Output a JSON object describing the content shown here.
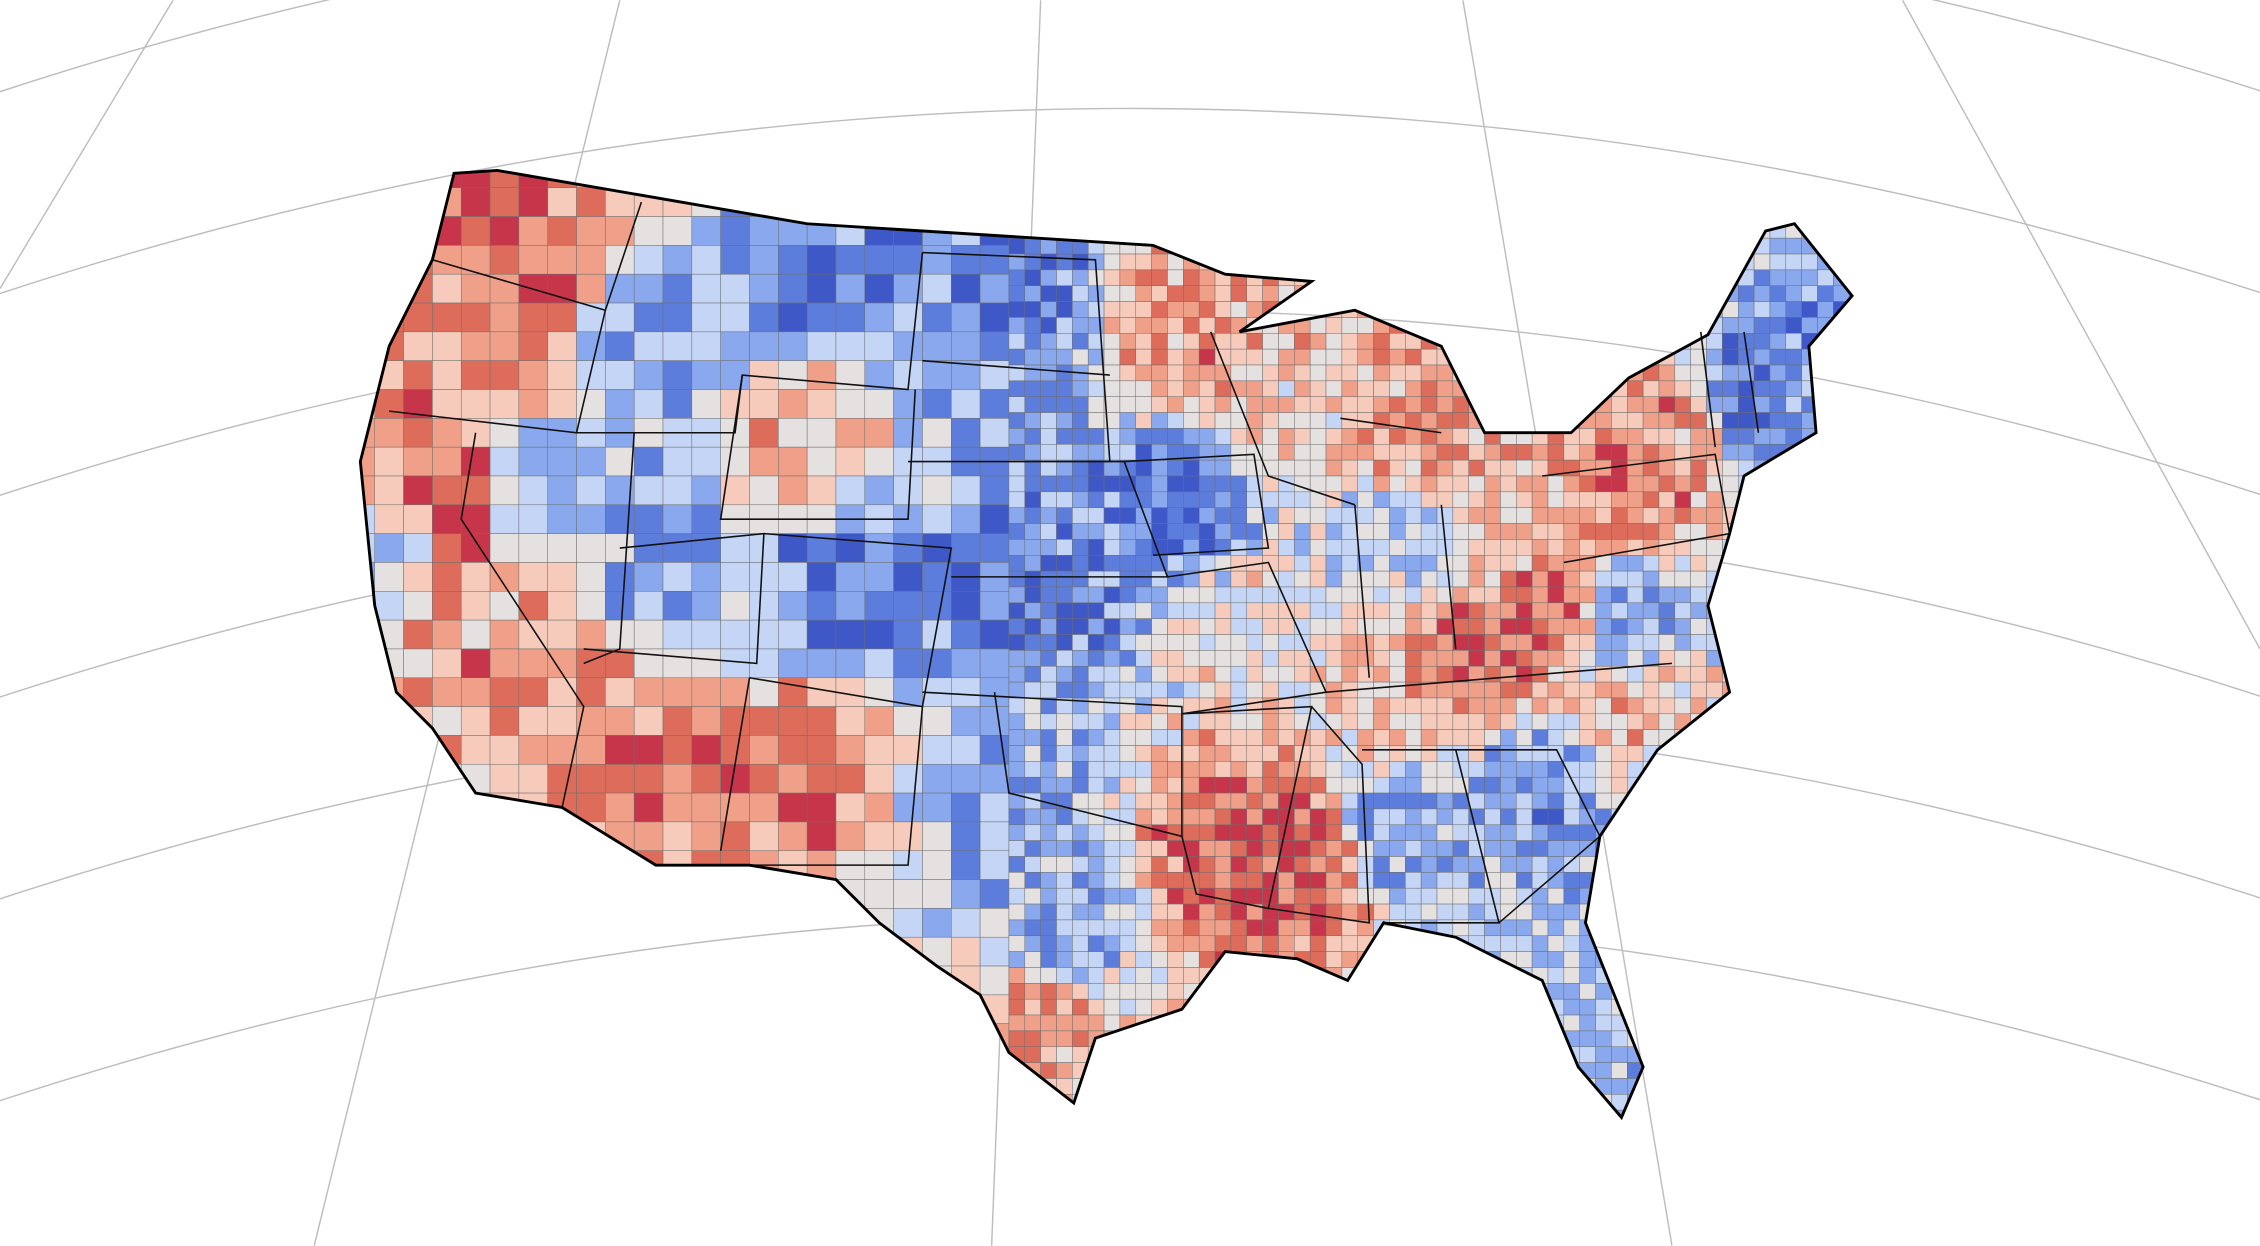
{
  "map": {
    "type": "choropleth",
    "graticule": true
  }
}
